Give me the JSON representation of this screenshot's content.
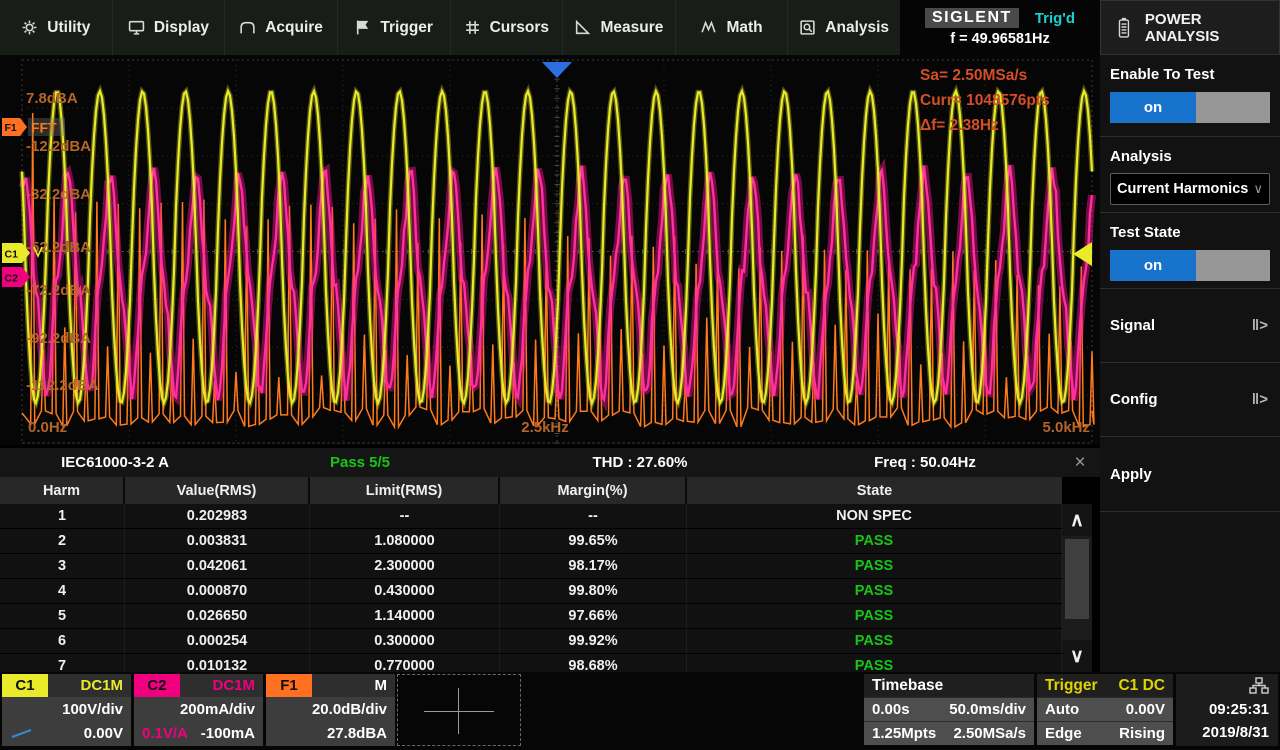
{
  "menu": {
    "items": [
      {
        "label": "Utility"
      },
      {
        "label": "Display"
      },
      {
        "label": "Acquire"
      },
      {
        "label": "Trigger"
      },
      {
        "label": "Cursors"
      },
      {
        "label": "Measure"
      },
      {
        "label": "Math"
      },
      {
        "label": "Analysis"
      }
    ]
  },
  "brand": {
    "logo": "SIGLENT",
    "trig_status": "Trig'd",
    "freq_readout": "f = 49.96581Hz"
  },
  "panel": {
    "title": "POWER ANALYSIS",
    "sections": {
      "enable_label": "Enable To Test",
      "enable_value": "on",
      "analysis_label": "Analysis",
      "analysis_value": "Current Harmonics",
      "test_state_label": "Test State",
      "test_state_value": "on",
      "signal_label": "Signal",
      "config_label": "Config",
      "apply_label": "Apply"
    }
  },
  "scope": {
    "db_labels": [
      "7.8dBA",
      "-12.2dBA",
      "-32.2dBA",
      "-52.2dBA",
      "-72.2dBA",
      "-92.2dBA",
      "-112.2dBA"
    ],
    "freq_labels": [
      "0.0Hz",
      "2.5kHz",
      "5.0kHz"
    ],
    "info_lines": [
      "Sa=  2.50MSa/s",
      "Curr= 1048576pts",
      "Δf=  2.38Hz"
    ],
    "markers": {
      "f1": "F1",
      "fft": "FFT",
      "c1": "C1",
      "c2": "C2"
    }
  },
  "chart_data": {
    "type": "line",
    "title": "Oscilloscope graticule: C1 voltage and C2 current time traces with F1 current-FFT",
    "x_axis": {
      "ticks": [
        "0.0Hz",
        "2.5kHz",
        "5.0kHz"
      ],
      "fft_span_hz": [
        0,
        5000
      ],
      "time_span": "500ms (50.0ms/div × 10)"
    },
    "y_axis": {
      "scale": "20.0dB/div",
      "reference": "27.8dBA",
      "tick_labels": [
        "7.8dBA",
        "-12.2dBA",
        "-32.2dBA",
        "-52.2dBA",
        "-72.2dBA",
        "-92.2dBA",
        "-112.2dBA"
      ]
    },
    "grid": {
      "columns": 10,
      "rows": 8,
      "style": "dotted"
    },
    "series": [
      {
        "name": "C1",
        "color": "#e8ea2a",
        "kind": "sine",
        "cycles_on_screen": 25,
        "scale": "100V/div",
        "offset": "0.00V"
      },
      {
        "name": "C2",
        "color": "#ff1493",
        "kind": "distorted-sine",
        "cycles_on_screen": 25,
        "scale": "200mA/div",
        "offset": "-100mA"
      },
      {
        "name": "F1",
        "color": "#ff7a1a",
        "kind": "fft-harmonic-spikes",
        "harmonic_spacing_hz": 50,
        "harmonics": 100,
        "sample_rate": "2.50MSa/s",
        "points": "1048576pts",
        "delta_f": "2.38Hz"
      }
    ]
  },
  "table": {
    "standard": "IEC61000-3-2 A",
    "pass": "Pass 5/5",
    "thd": "THD : 27.60%",
    "freq": "Freq : 50.04Hz",
    "close": "×",
    "columns": [
      "Harm",
      "Value(RMS)",
      "Limit(RMS)",
      "Margin(%)",
      "State"
    ],
    "rows": [
      {
        "harm": "1",
        "value": "0.202983",
        "limit": "--",
        "margin": "--",
        "state": "NON SPEC"
      },
      {
        "harm": "2",
        "value": "0.003831",
        "limit": "1.080000",
        "margin": "99.65%",
        "state": "PASS"
      },
      {
        "harm": "3",
        "value": "0.042061",
        "limit": "2.300000",
        "margin": "98.17%",
        "state": "PASS"
      },
      {
        "harm": "4",
        "value": "0.000870",
        "limit": "0.430000",
        "margin": "99.80%",
        "state": "PASS"
      },
      {
        "harm": "5",
        "value": "0.026650",
        "limit": "1.140000",
        "margin": "97.66%",
        "state": "PASS"
      },
      {
        "harm": "6",
        "value": "0.000254",
        "limit": "0.300000",
        "margin": "99.92%",
        "state": "PASS"
      },
      {
        "harm": "7",
        "value": "0.010132",
        "limit": "0.770000",
        "margin": "98.68%",
        "state": "PASS"
      }
    ]
  },
  "statusbar": {
    "c1": {
      "name": "C1",
      "coupling": "DC1M",
      "scale": "100V/div",
      "offset": "0.00V"
    },
    "c2": {
      "name": "C2",
      "coupling": "DC1M",
      "scale": "200mA/div",
      "probe": "0.1V/A",
      "offset": "-100mA"
    },
    "f1": {
      "name": "F1",
      "mode": "M",
      "scale": "20.0dB/div",
      "offset": "27.8dBA"
    },
    "timebase": {
      "title": "Timebase",
      "delay": "0.00s",
      "scale": "50.0ms/div",
      "points": "1.25Mpts",
      "rate": "2.50MSa/s"
    },
    "trigger": {
      "title": "Trigger",
      "source": "C1 DC",
      "mode": "Auto",
      "level": "0.00V",
      "type": "Edge",
      "slope": "Rising"
    },
    "clock": {
      "time": "09:25:31",
      "date": "2019/8/31"
    }
  },
  "colors": {
    "accent_blue": "#1873cc",
    "pass_green": "#17c517",
    "trig_cyan": "#1ad0d0",
    "c1_yellow": "#e8ea2a",
    "c2_magenta": "#ff1493",
    "f1_orange": "#ff7a1a",
    "axis_label_orange": "#b5652a",
    "info_orange": "#d54e28"
  }
}
